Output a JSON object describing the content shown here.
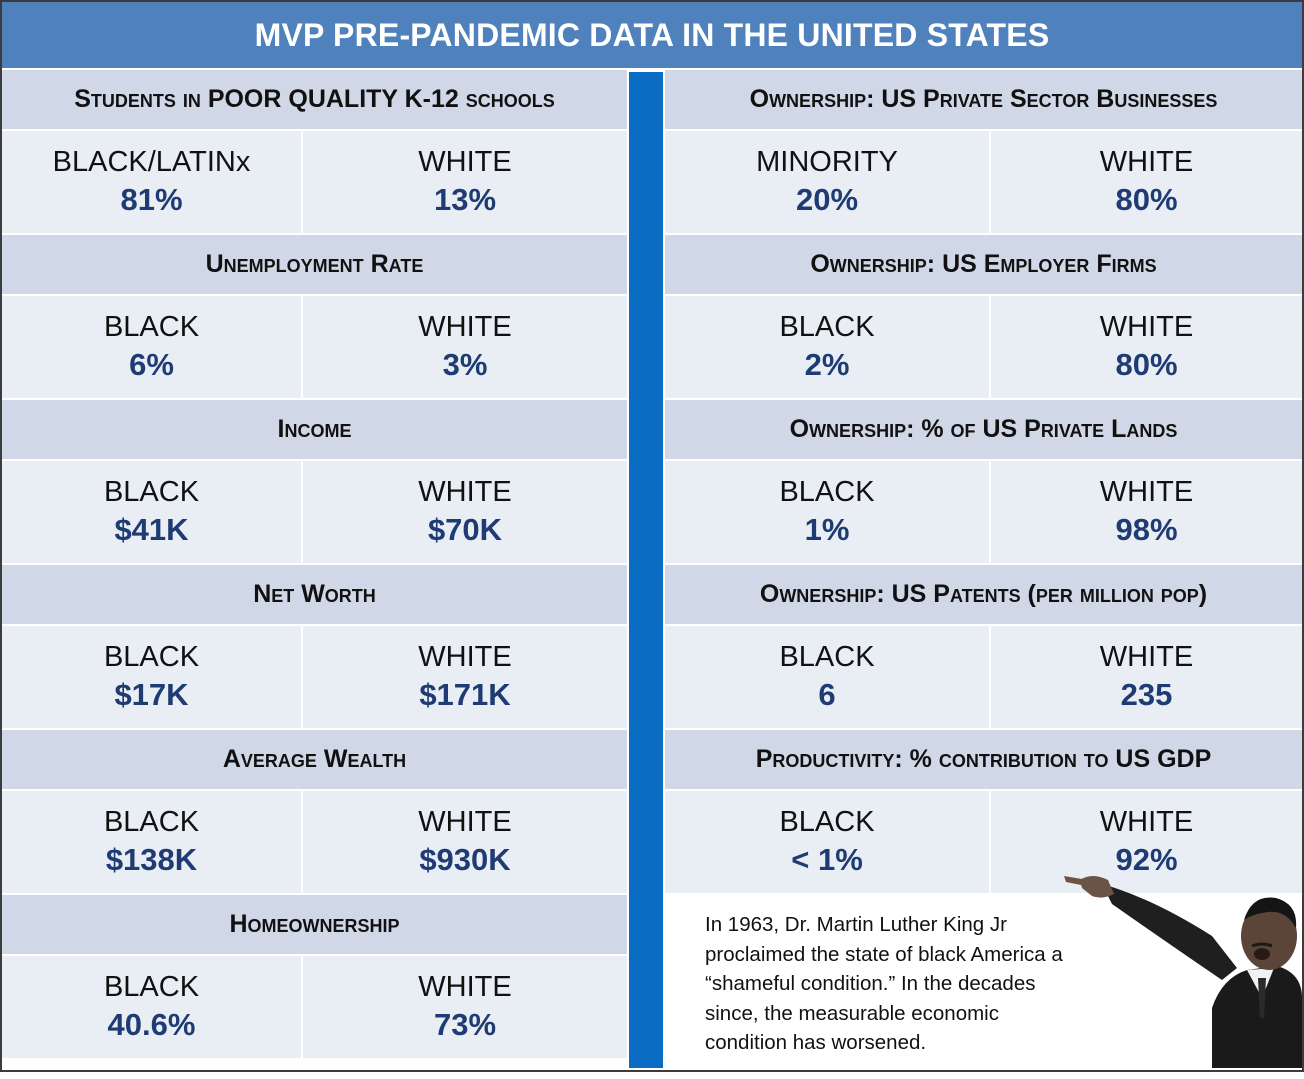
{
  "title": "MVP PRE-PANDEMIC DATA IN THE UNITED STATES",
  "left": [
    {
      "heading": "Students in POOR QUALITY K-12 schools",
      "a_label": "BLACK/LATINx",
      "a_value": "81%",
      "b_label": "WHITE",
      "b_value": "13%"
    },
    {
      "heading": "Unemployment Rate",
      "a_label": "BLACK",
      "a_value": "6%",
      "b_label": "WHITE",
      "b_value": "3%"
    },
    {
      "heading": "Income",
      "a_label": "BLACK",
      "a_value": "$41K",
      "b_label": "WHITE",
      "b_value": "$70K"
    },
    {
      "heading": "Net Worth",
      "a_label": "BLACK",
      "a_value": "$17K",
      "b_label": "WHITE",
      "b_value": "$171K"
    },
    {
      "heading": "Average Wealth",
      "a_label": "BLACK",
      "a_value": "$138K",
      "b_label": "WHITE",
      "b_value": "$930K"
    },
    {
      "heading": "Homeownership",
      "a_label": "BLACK",
      "a_value": "40.6%",
      "b_label": "WHITE",
      "b_value": "73%"
    }
  ],
  "right": [
    {
      "heading": "Ownership: US Private Sector Businesses",
      "a_label": "MINORITY",
      "a_value": "20%",
      "b_label": "WHITE",
      "b_value": "80%"
    },
    {
      "heading": "Ownership: US Employer Firms",
      "a_label": "BLACK",
      "a_value": "2%",
      "b_label": "WHITE",
      "b_value": "80%"
    },
    {
      "heading": "Ownership: % of US Private Lands",
      "a_label": "BLACK",
      "a_value": "1%",
      "b_label": "WHITE",
      "b_value": "98%"
    },
    {
      "heading": "Ownership: US Patents (per million pop)",
      "a_label": "BLACK",
      "a_value": "6",
      "b_label": "WHITE",
      "b_value": "235"
    },
    {
      "heading": "Productivity: % contribution to US GDP",
      "a_label": "BLACK",
      "a_value": "< 1%",
      "b_label": "WHITE",
      "b_value": "92%"
    }
  ],
  "quote": "In 1963, Dr. Martin Luther King Jr proclaimed the state of black America a “shameful condition.” In the decades since, the measurable economic condition has worsened.",
  "colors": {
    "title_bar": "#4f81bd",
    "heading_band": "#d0d8e8",
    "data_band": "#e9edf4",
    "value_text": "#1f3b73",
    "divider": "#0a6cc2"
  }
}
